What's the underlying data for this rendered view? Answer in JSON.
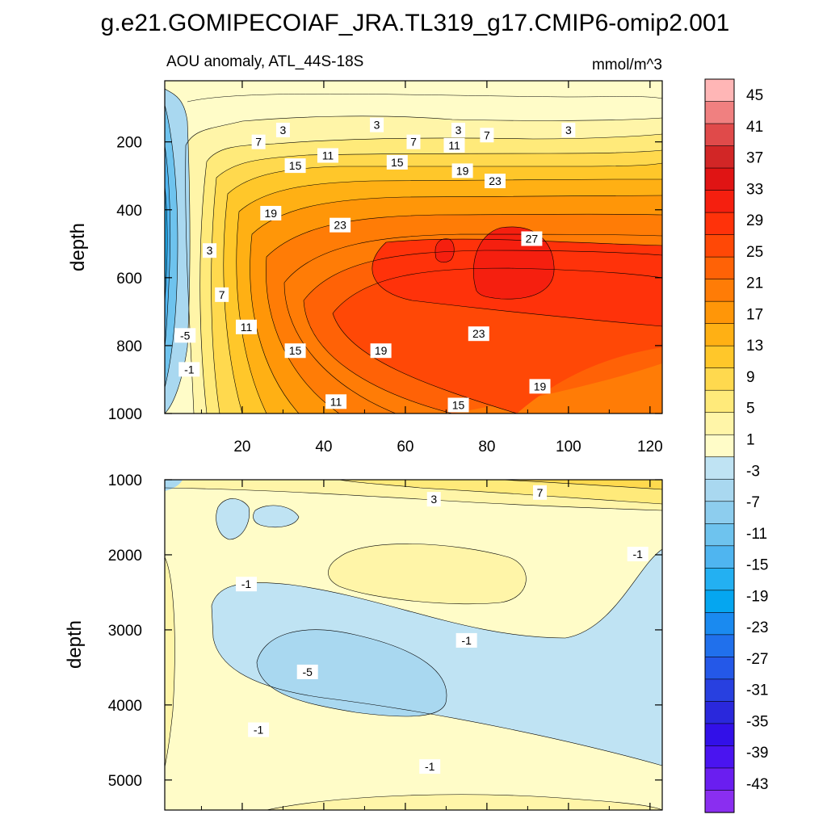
{
  "figure": {
    "title": "g.e21.GOMIPECOIAF_JRA.TL319_g17.CMIP6-omip2.001",
    "subtitle_left": "AOU anomaly, ATL_44S-18S",
    "subtitle_right": "mmol/m^3"
  },
  "colors": {
    "positive_ramp": [
      "#fffcc8",
      "#fff5a8",
      "#ffea7a",
      "#ffd94e",
      "#ffc72a",
      "#ffb014",
      "#ff9608",
      "#ff7c06",
      "#ff6206",
      "#ff4806",
      "#ff320a",
      "#f51f0f",
      "#e01414",
      "#d22626",
      "#e04a4a",
      "#f08080",
      "#ffb6b6"
    ],
    "negative_ramp": [
      "#bfe3f3",
      "#a9d8f0",
      "#8dcdee",
      "#6ec3ee",
      "#4fb5f0",
      "#23b0f2",
      "#05a6f0",
      "#1a8af0",
      "#2070ec",
      "#2458e8",
      "#2840e0",
      "#2a28dc",
      "#3210e8",
      "#4a14f0",
      "#6a1ef0",
      "#8a2ef0"
    ],
    "contour_line": "#000000"
  },
  "chart_data": {
    "type": "contour",
    "colorbar": {
      "labels": [
        "45",
        "41",
        "37",
        "33",
        "29",
        "25",
        "21",
        "17",
        "13",
        "9",
        "5",
        "1",
        "-3",
        "-7",
        "-11",
        "-15",
        "-19",
        "-23",
        "-27",
        "-31",
        "-35",
        "-39",
        "-43"
      ],
      "min": -45,
      "max": 47,
      "interval": 2
    },
    "panels": [
      {
        "ylabel": "depth",
        "y_range": [
          1000,
          20
        ],
        "y_ticks": [
          "200",
          "400",
          "600",
          "800",
          "1000"
        ],
        "x_range": [
          1,
          123
        ],
        "x_ticks": [
          "20",
          "40",
          "60",
          "80",
          "100",
          "120"
        ],
        "contour_labels": [
          {
            "text": "3",
            "x": 30,
            "y": 165
          },
          {
            "text": "3",
            "x": 53,
            "y": 150
          },
          {
            "text": "3",
            "x": 73,
            "y": 165
          },
          {
            "text": "3",
            "x": 100,
            "y": 165
          },
          {
            "text": "7",
            "x": 24,
            "y": 200
          },
          {
            "text": "7",
            "x": 62,
            "y": 200
          },
          {
            "text": "7",
            "x": 80,
            "y": 180
          },
          {
            "text": "11",
            "x": 41,
            "y": 240
          },
          {
            "text": "11",
            "x": 72,
            "y": 210
          },
          {
            "text": "15",
            "x": 33,
            "y": 270
          },
          {
            "text": "15",
            "x": 58,
            "y": 260
          },
          {
            "text": "19",
            "x": 27,
            "y": 410
          },
          {
            "text": "19",
            "x": 74,
            "y": 285
          },
          {
            "text": "23",
            "x": 44,
            "y": 445
          },
          {
            "text": "23",
            "x": 82,
            "y": 315
          },
          {
            "text": "27",
            "x": 91,
            "y": 485
          },
          {
            "text": "3",
            "x": 12,
            "y": 520
          },
          {
            "text": "7",
            "x": 15,
            "y": 650
          },
          {
            "text": "11",
            "x": 21,
            "y": 745
          },
          {
            "text": "15",
            "x": 33,
            "y": 815
          },
          {
            "text": "19",
            "x": 54,
            "y": 815
          },
          {
            "text": "23",
            "x": 78,
            "y": 765
          },
          {
            "text": "19",
            "x": 93,
            "y": 920
          },
          {
            "text": "15",
            "x": 73,
            "y": 975
          },
          {
            "text": "11",
            "x": 43,
            "y": 965
          },
          {
            "text": "-5",
            "x": 6,
            "y": 770
          },
          {
            "text": "-1",
            "x": 7,
            "y": 870
          }
        ]
      },
      {
        "ylabel": "depth",
        "y_range": [
          5400,
          1000
        ],
        "y_ticks": [
          "1000",
          "2000",
          "3000",
          "4000",
          "5000"
        ],
        "x_range": [
          1,
          123
        ],
        "contour_labels": [
          {
            "text": "3",
            "x": 67,
            "y": 1260
          },
          {
            "text": "7",
            "x": 93,
            "y": 1170
          },
          {
            "text": "-1",
            "x": 117,
            "y": 1990
          },
          {
            "text": "-1",
            "x": 21,
            "y": 2390
          },
          {
            "text": "-1",
            "x": 75,
            "y": 3140
          },
          {
            "text": "-5",
            "x": 36,
            "y": 3560
          },
          {
            "text": "-1",
            "x": 24,
            "y": 4330
          },
          {
            "text": "-1",
            "x": 66,
            "y": 4820
          }
        ]
      }
    ]
  }
}
